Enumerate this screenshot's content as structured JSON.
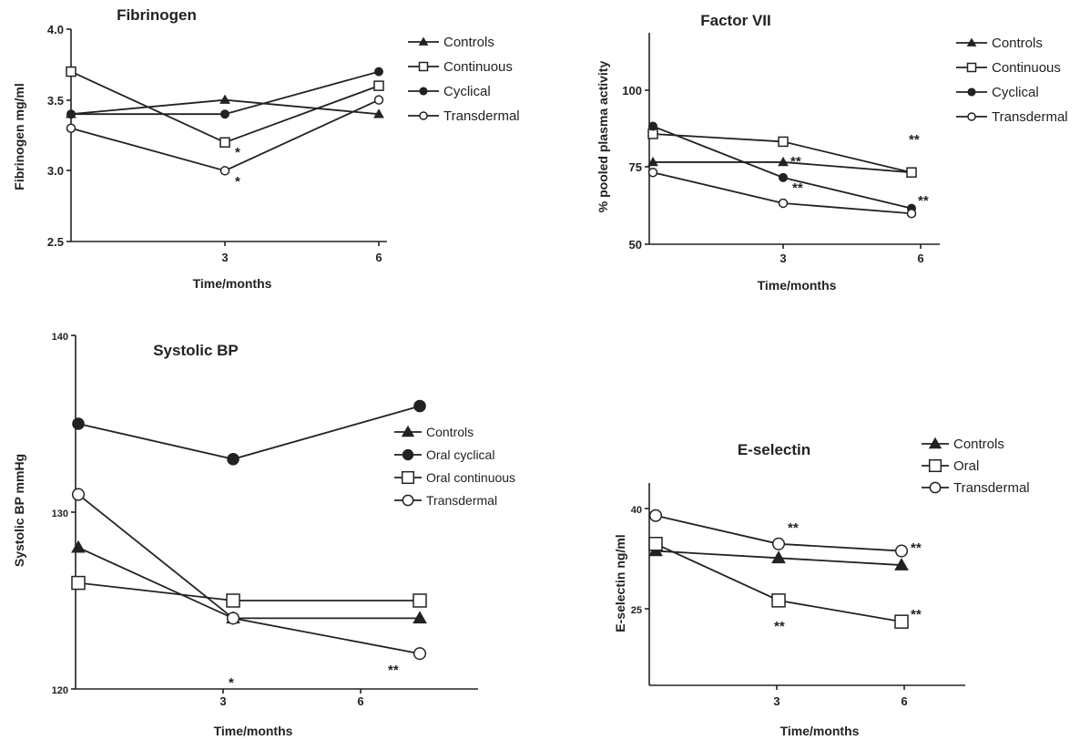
{
  "chart_data": [
    {
      "type": "line",
      "title": "Fibrinogen",
      "xlabel": "Time/months",
      "ylabel": "Fibrinogen mg/ml",
      "x": [
        0,
        3,
        6
      ],
      "xticks": [
        "3",
        "6"
      ],
      "ylim": [
        2.5,
        4.0
      ],
      "yticks": [
        "2.5",
        "3.0",
        "3.5",
        "4.0"
      ],
      "grid": false,
      "legend_position": "right",
      "series": [
        {
          "name": "Controls",
          "marker": "triangle-filled",
          "values": [
            3.4,
            3.5,
            3.4
          ]
        },
        {
          "name": "Continuous",
          "marker": "square-open",
          "values": [
            3.7,
            3.2,
            3.6
          ]
        },
        {
          "name": "Cyclical",
          "marker": "circle-filled",
          "values": [
            3.4,
            3.4,
            3.7
          ]
        },
        {
          "name": "Transdermal",
          "marker": "circle-open",
          "values": [
            3.3,
            3.0,
            3.5
          ]
        }
      ],
      "annotations": [
        {
          "text": "*",
          "x": 3,
          "y": 3.2
        },
        {
          "text": "*",
          "x": 3,
          "y": 3.0
        }
      ]
    },
    {
      "type": "line",
      "title": "Factor VII",
      "xlabel": "Time/months",
      "ylabel": "% pooled plasma activity",
      "x": [
        0,
        3,
        6
      ],
      "xticks": [
        "3",
        "6"
      ],
      "ylim": [
        50,
        120
      ],
      "yticks": [
        "50",
        "75",
        "100"
      ],
      "grid": false,
      "legend_position": "right",
      "series": [
        {
          "name": "Controls",
          "marker": "triangle-filled",
          "values": [
            82,
            82,
            78
          ]
        },
        {
          "name": "Continuous",
          "marker": "square-open",
          "values": [
            93,
            90,
            78
          ]
        },
        {
          "name": "Cyclical",
          "marker": "circle-filled",
          "values": [
            96,
            76,
            64
          ]
        },
        {
          "name": "Transdermal",
          "marker": "circle-open",
          "values": [
            78,
            66,
            62
          ]
        }
      ],
      "annotations": [
        {
          "text": "**",
          "x": 6,
          "y": 78
        },
        {
          "text": "**",
          "x": 3,
          "y": 76
        },
        {
          "text": "**",
          "x": 3,
          "y": 66
        },
        {
          "text": "**",
          "x": 6,
          "y": 64
        }
      ]
    },
    {
      "type": "line",
      "title": "Systolic BP",
      "xlabel": "Time/months",
      "ylabel": "Systolic BP mmHg",
      "x": [
        0,
        3,
        6
      ],
      "xticks": [
        "3",
        "6"
      ],
      "ylim": [
        120,
        140
      ],
      "yticks": [
        "120",
        "130",
        "140"
      ],
      "grid": false,
      "legend_position": "right",
      "series": [
        {
          "name": "Controls",
          "marker": "triangle-filled",
          "values": [
            128,
            124,
            124
          ]
        },
        {
          "name": "Oral cyclical",
          "marker": "circle-filled",
          "values": [
            135,
            133,
            136
          ]
        },
        {
          "name": "Oral continuous",
          "marker": "square-open",
          "values": [
            126,
            125,
            125
          ]
        },
        {
          "name": "Transdermal",
          "marker": "circle-open",
          "values": [
            131,
            124,
            122
          ]
        }
      ],
      "annotations": [
        {
          "text": "*",
          "x": 3,
          "y": 124
        },
        {
          "text": "**",
          "x": 6,
          "y": 122
        }
      ]
    },
    {
      "type": "line",
      "title": "E-selectin",
      "xlabel": "Time/months",
      "ylabel": "E-selectin ng/ml",
      "x": [
        0,
        3,
        6
      ],
      "xticks": [
        "3",
        "6"
      ],
      "ylim": [
        15,
        40
      ],
      "yticks": [
        "25",
        "40"
      ],
      "grid": false,
      "legend_position": "top-right",
      "series": [
        {
          "name": "Controls",
          "marker": "triangle-filled",
          "values": [
            34,
            33,
            32
          ]
        },
        {
          "name": "Oral",
          "marker": "square-open",
          "values": [
            35,
            27,
            24
          ]
        },
        {
          "name": "Transdermal",
          "marker": "circle-open",
          "values": [
            39,
            35,
            34
          ]
        }
      ],
      "annotations": [
        {
          "text": "**",
          "x": 3,
          "y": 35
        },
        {
          "text": "**",
          "x": 6,
          "y": 34
        },
        {
          "text": "**",
          "x": 3,
          "y": 27
        },
        {
          "text": "**",
          "x": 6,
          "y": 24
        }
      ]
    }
  ]
}
